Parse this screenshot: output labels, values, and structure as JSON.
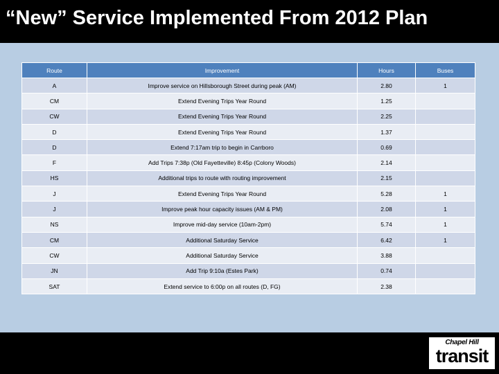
{
  "title": "“New” Service Implemented From 2012 Plan",
  "table": {
    "headers": [
      "Route",
      "Improvement",
      "Hours",
      "Buses"
    ],
    "rows": [
      [
        "A",
        "Improve service on Hillsborough Street during peak (AM)",
        "2.80",
        "1"
      ],
      [
        "CM",
        "Extend Evening Trips Year Round",
        "1.25",
        ""
      ],
      [
        "CW",
        "Extend Evening Trips Year Round",
        "2.25",
        ""
      ],
      [
        "D",
        "Extend Evening Trips Year Round",
        "1.37",
        ""
      ],
      [
        "D",
        "Extend 7:17am trip to begin in Carrboro",
        "0.69",
        ""
      ],
      [
        "F",
        "Add Trips 7:38p (Old Fayetteville) 8:45p (Colony Woods)",
        "2.14",
        ""
      ],
      [
        "HS",
        "Additional trips to route with routing improvement",
        "2.15",
        ""
      ],
      [
        "J",
        "Extend Evening Trips Year Round",
        "5.28",
        "1"
      ],
      [
        "J",
        "Improve peak hour capacity issues (AM & PM)",
        "2.08",
        "1"
      ],
      [
        "NS",
        "Improve mid-day service (10am-2pm)",
        "5.74",
        "1"
      ],
      [
        "CM",
        "Additional Saturday Service",
        "6.42",
        "1"
      ],
      [
        "CW",
        "Additional Saturday Service",
        "3.88",
        ""
      ],
      [
        "JN",
        "Add Trip 9:10a (Estes Park)",
        "0.74",
        ""
      ],
      [
        "SAT",
        "Extend service to 6:00p on all routes (D, FG)",
        "2.38",
        ""
      ]
    ]
  },
  "logo": {
    "line1": "Chapel Hill",
    "line2": "transit"
  },
  "colors": {
    "header_bg": "#4f81bd",
    "content_bg": "#b8cde3",
    "row_odd": "#cfd7e8",
    "row_even": "#e9edf4"
  }
}
